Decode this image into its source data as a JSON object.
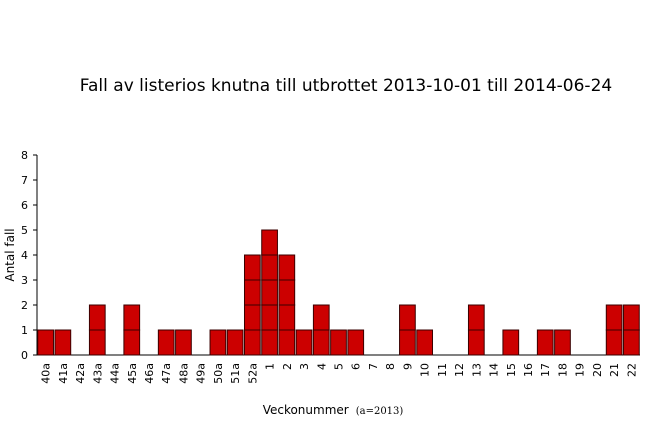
{
  "chart_data": {
    "type": "bar",
    "title": "Fall av listerios knutna till utbrottet 2013-10-01 till 2014-06-24",
    "xlabel": "Veckonummer",
    "xlabel_note": "(a=2013)",
    "ylabel": "Antal fall",
    "ylim": [
      0,
      8
    ],
    "yticks": [
      0,
      1,
      2,
      3,
      4,
      5,
      6,
      7,
      8
    ],
    "grid": false,
    "categories": [
      "40a",
      "41a",
      "42a",
      "43a",
      "44a",
      "45a",
      "46a",
      "47a",
      "48a",
      "49a",
      "50a",
      "51a",
      "52a",
      "1",
      "2",
      "3",
      "4",
      "5",
      "6",
      "7",
      "8",
      "9",
      "10",
      "11",
      "12",
      "13",
      "14",
      "15",
      "16",
      "17",
      "18",
      "19",
      "20",
      "21",
      "22"
    ],
    "values": [
      1,
      1,
      0,
      2,
      0,
      2,
      0,
      1,
      1,
      0,
      1,
      1,
      4,
      5,
      4,
      1,
      2,
      1,
      1,
      0,
      0,
      2,
      1,
      0,
      0,
      2,
      0,
      1,
      0,
      1,
      1,
      0,
      0,
      2,
      2
    ],
    "colors": {
      "case_fill": "#cc0000",
      "case_border": "#3a0000"
    }
  }
}
